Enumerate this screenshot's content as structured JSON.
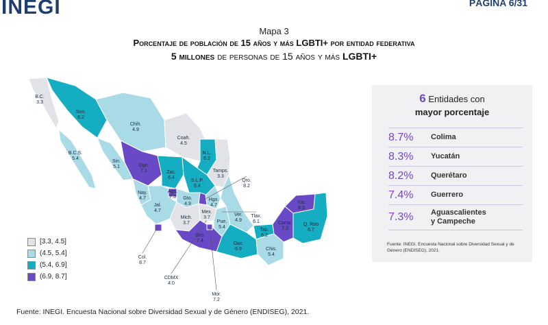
{
  "header": {
    "logo": "INEGI",
    "page": "PÁGINA 6/31"
  },
  "titles": {
    "map_label": "Mapa 3",
    "line1": "Porcentaje de población de 15 años y más LGBTI+ por entidad federativa",
    "line2_bold": "5 millones",
    "line2_rest": " de personas de 15 años y más ",
    "line2_tail": "LGBTI+"
  },
  "legend": [
    {
      "label": "[3.3, 4.5]",
      "color": "#e1e3e8"
    },
    {
      "label": "(4.5, 5.4]",
      "color": "#a9dbe6"
    },
    {
      "label": "(5.4, 6.9]",
      "color": "#15adc2"
    },
    {
      "label": "(6.9, 8.7]",
      "color": "#6a49c6"
    }
  ],
  "states": [
    {
      "abbr": "B.C.",
      "value": "3.3",
      "class": 0
    },
    {
      "abbr": "Son.",
      "value": "6.2",
      "class": 2
    },
    {
      "abbr": "Chih.",
      "value": "4.9",
      "class": 1
    },
    {
      "abbr": "Coah.",
      "value": "4.5",
      "class": 0
    },
    {
      "abbr": "B.C.S.",
      "value": "5.4",
      "class": 1
    },
    {
      "abbr": "N.L.",
      "value": "6.2",
      "class": 2
    },
    {
      "abbr": "Sin.",
      "value": "5.1",
      "class": 1
    },
    {
      "abbr": "Dgo.",
      "value": "7.1",
      "class": 3
    },
    {
      "abbr": "Tamps.",
      "value": "3.3",
      "class": 0
    },
    {
      "abbr": "Zac.",
      "value": "6.4",
      "class": 2
    },
    {
      "abbr": "S.L.P.",
      "value": "6.4",
      "class": 2
    },
    {
      "abbr": "Qro.",
      "value": "8.2",
      "class": 3
    },
    {
      "abbr": "Ags.",
      "value": "7.3",
      "class": 3
    },
    {
      "abbr": "Nay.",
      "value": "4.7",
      "class": 1
    },
    {
      "abbr": "Gto.",
      "value": "4.9",
      "class": 1
    },
    {
      "abbr": "Hgo.",
      "value": "4.7",
      "class": 1
    },
    {
      "abbr": "Jal.",
      "value": "4.7",
      "class": 1
    },
    {
      "abbr": "Tlax.",
      "value": "6.1",
      "class": 2
    },
    {
      "abbr": "Mich.",
      "value": "3.7",
      "class": 0
    },
    {
      "abbr": "Mex.",
      "value": "3.7",
      "class": 0
    },
    {
      "abbr": "Pue.",
      "value": "5.4",
      "class": 1
    },
    {
      "abbr": "Ver.",
      "value": "4.9",
      "class": 1
    },
    {
      "abbr": "Col.",
      "value": "8.7",
      "class": 3
    },
    {
      "abbr": "Gro.",
      "value": "7.4",
      "class": 3
    },
    {
      "abbr": "Oax.",
      "value": "6.9",
      "class": 2
    },
    {
      "abbr": "Tab.",
      "value": "6.2",
      "class": 2
    },
    {
      "abbr": "Chis.",
      "value": "5.4",
      "class": 1
    },
    {
      "abbr": "Camp.",
      "value": "7.3",
      "class": 3
    },
    {
      "abbr": "Yuc.",
      "value": "8.3",
      "class": 3
    },
    {
      "abbr": "Q. Roo",
      "value": "6.7",
      "class": 2
    },
    {
      "abbr": "CDMX",
      "value": "4.0",
      "class": 0
    },
    {
      "abbr": "Mor.",
      "value": "7.2",
      "class": 3
    }
  ],
  "panel": {
    "count": "6",
    "head_a": " Entidades con",
    "head_b": "mayor porcentaje",
    "ranking": [
      {
        "pct": "8.7%",
        "name": "Colima"
      },
      {
        "pct": "8.3%",
        "name": "Yucatán"
      },
      {
        "pct": "8.2%",
        "name": "Querétaro"
      },
      {
        "pct": "7.4%",
        "name": "Guerrero"
      },
      {
        "pct": "7.3%",
        "name": "Aguascalientes",
        "name2": "y Campeche"
      }
    ],
    "source": "Fuente: INEGI. Encuesta Nacional sobre Diversidad Sexual y de Género (ENDISEG), 2021."
  },
  "footer": "Fuente: INEGI. Encuesta Nacional sobre Diversidad Sexual y de Género (ENDISEG), 2021."
}
